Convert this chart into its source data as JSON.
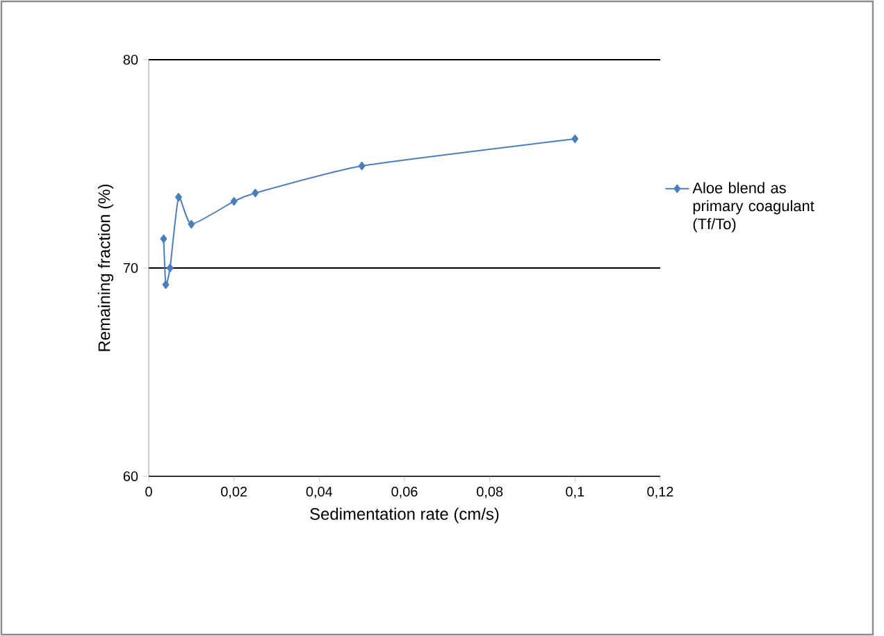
{
  "chart_data": {
    "type": "line",
    "xlabel": "Sedimentation rate (cm/s)",
    "ylabel": "Remaining fraction (%)",
    "x": [
      0.0035,
      0.004,
      0.005,
      0.007,
      0.01,
      0.02,
      0.025,
      0.05,
      0.1
    ],
    "series": [
      {
        "name": "Aloe blend as primary coagulant (Tf/To)",
        "color": "#4a7ebb",
        "values": [
          71.4,
          69.2,
          70.0,
          73.4,
          72.1,
          73.2,
          73.6,
          74.9,
          76.2
        ]
      }
    ],
    "xlim": [
      0,
      0.12
    ],
    "ylim": [
      60,
      80
    ],
    "xticks": [
      {
        "value": 0,
        "label": "0"
      },
      {
        "value": 0.02,
        "label": "0,02"
      },
      {
        "value": 0.04,
        "label": "0,04"
      },
      {
        "value": 0.06,
        "label": "0,06"
      },
      {
        "value": 0.08,
        "label": "0,08"
      },
      {
        "value": 0.1,
        "label": "0,1"
      },
      {
        "value": 0.12,
        "label": "0,12"
      }
    ],
    "yticks": [
      60,
      70,
      80
    ],
    "grid": "y",
    "legend": "right",
    "marker": "diamond",
    "line_style": "solid"
  }
}
